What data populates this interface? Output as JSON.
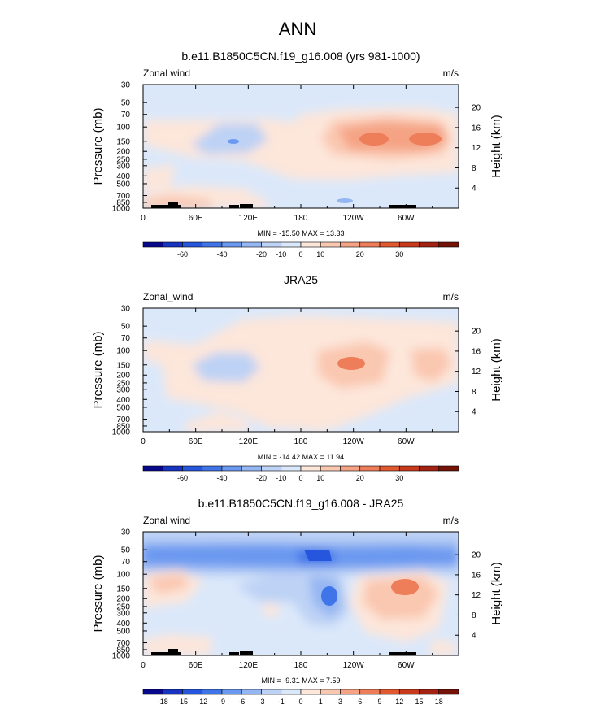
{
  "figure": {
    "title": "ANN"
  },
  "chart_data": [
    {
      "type": "heatmap",
      "title": "b.e11.B1850C5CN.f19_g16.008 (yrs 981-1000)",
      "variable_label": "Zonal wind",
      "units": "m/s",
      "xlabel": "",
      "ylabel": "Pressure (mb)",
      "right_label": "Height (km)",
      "x_ticks": [
        "0",
        "60E",
        "120E",
        "180",
        "120W",
        "60W"
      ],
      "y_ticks": [
        "30",
        "50",
        "70",
        "100",
        "150",
        "200",
        "250",
        "300",
        "400",
        "500",
        "700",
        "850",
        "1000"
      ],
      "height_ticks": [
        "20",
        "16",
        "12",
        "8",
        "4"
      ],
      "stats": "MIN = -15.50  MAX =  13.33",
      "colorbar_labels": [
        "-60",
        "-40",
        "-20",
        "-10",
        "0",
        "10",
        "20",
        "30"
      ],
      "colorbar_colors": [
        "#08088c",
        "#1633c2",
        "#2656de",
        "#3f75e8",
        "#6b98f0",
        "#94b6f2",
        "#bdd2f5",
        "#dbe8fa",
        "#fde6da",
        "#fac7b0",
        "#f5a384",
        "#ee7d5a",
        "#e2582f",
        "#c93a1d",
        "#a32211",
        "#751207"
      ],
      "data_min": -15.5,
      "data_max": 13.33
    },
    {
      "type": "heatmap",
      "title": "JRA25",
      "variable_label": "Zonal_wind",
      "units": "m/s",
      "xlabel": "",
      "ylabel": "Pressure (mb)",
      "right_label": "Height (km)",
      "x_ticks": [
        "0",
        "60E",
        "120E",
        "180",
        "120W",
        "60W"
      ],
      "y_ticks": [
        "30",
        "50",
        "70",
        "100",
        "150",
        "200",
        "250",
        "300",
        "400",
        "500",
        "700",
        "850",
        "1000"
      ],
      "height_ticks": [
        "20",
        "16",
        "12",
        "8",
        "4"
      ],
      "stats": "MIN = -14.42  MAX =  11.94",
      "colorbar_labels": [
        "-60",
        "-40",
        "-20",
        "-10",
        "0",
        "10",
        "20",
        "30"
      ],
      "colorbar_colors": [
        "#08088c",
        "#1633c2",
        "#2656de",
        "#3f75e8",
        "#6b98f0",
        "#94b6f2",
        "#bdd2f5",
        "#dbe8fa",
        "#fde6da",
        "#fac7b0",
        "#f5a384",
        "#ee7d5a",
        "#e2582f",
        "#c93a1d",
        "#a32211",
        "#751207"
      ],
      "data_min": -14.42,
      "data_max": 11.94
    },
    {
      "type": "heatmap",
      "title": "b.e11.B1850C5CN.f19_g16.008 - JRA25",
      "variable_label": "Zonal wind",
      "units": "m/s",
      "xlabel": "",
      "ylabel": "Pressure (mb)",
      "right_label": "Height (km)",
      "x_ticks": [
        "0",
        "60E",
        "120E",
        "180",
        "120W",
        "60W"
      ],
      "y_ticks": [
        "30",
        "50",
        "70",
        "100",
        "150",
        "200",
        "250",
        "300",
        "400",
        "500",
        "700",
        "850",
        "1000"
      ],
      "height_ticks": [
        "20",
        "16",
        "12",
        "8",
        "4"
      ],
      "stats": "MIN =  -9.31  MAX =   7.59",
      "colorbar_labels": [
        "-18",
        "-15",
        "-12",
        "-9",
        "-6",
        "-3",
        "-1",
        "0",
        "1",
        "3",
        "6",
        "9",
        "12",
        "15",
        "18"
      ],
      "colorbar_colors": [
        "#08088c",
        "#1633c2",
        "#2656de",
        "#3f75e8",
        "#6b98f0",
        "#94b6f2",
        "#bdd2f5",
        "#dbe8fa",
        "#fde6da",
        "#fac7b0",
        "#f5a384",
        "#ee7d5a",
        "#e2582f",
        "#c93a1d",
        "#a32211",
        "#751207"
      ],
      "data_min": -9.31,
      "data_max": 7.59
    }
  ]
}
